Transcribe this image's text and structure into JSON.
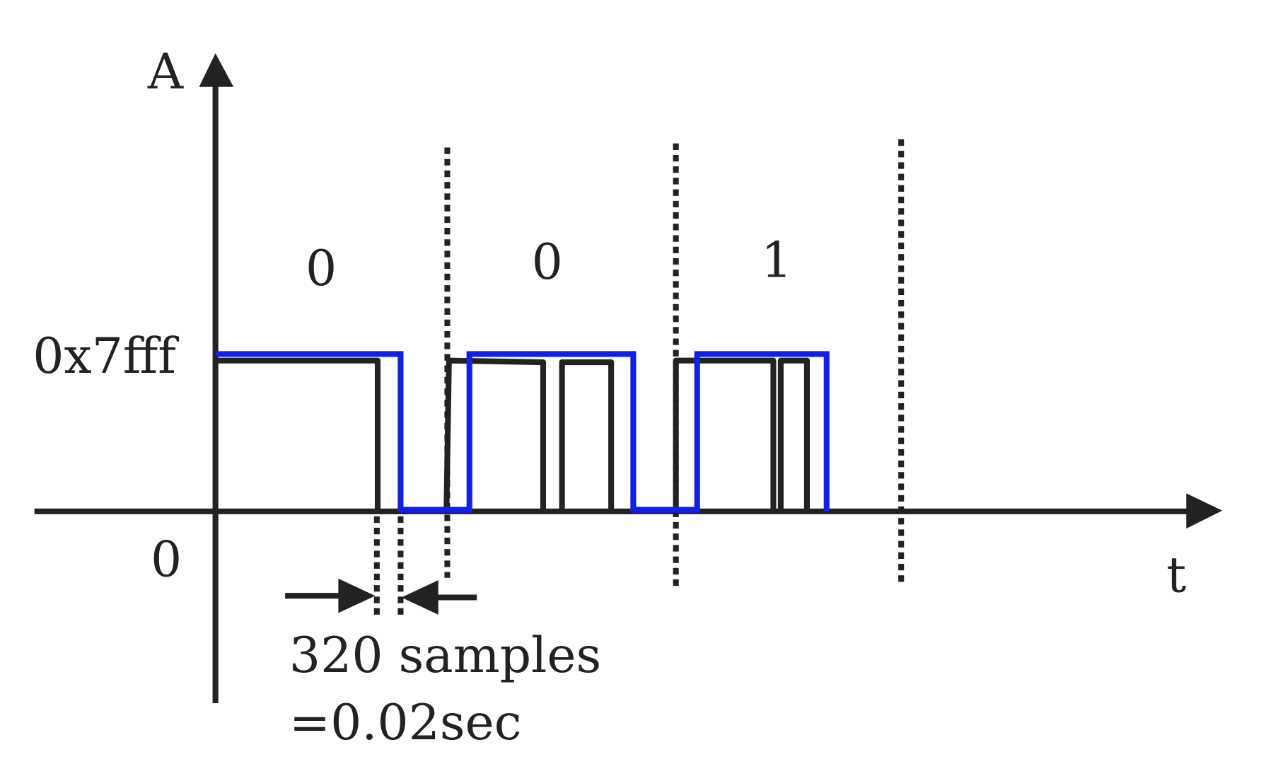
{
  "axes": {
    "y_label": "A",
    "x_label": "t",
    "high_level": "0x7fff",
    "zero_level": "0"
  },
  "bits": [
    "0",
    "0",
    "1"
  ],
  "annotation": {
    "line1": "320 samples",
    "line2": "=0.02sec"
  }
}
